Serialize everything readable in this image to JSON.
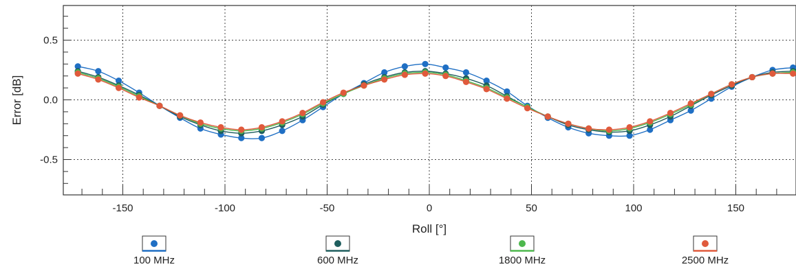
{
  "chart_data": {
    "type": "line",
    "xlabel": "Roll [°]",
    "ylabel": "Error [dB]",
    "xlim": [
      -180,
      180
    ],
    "ylim": [
      -0.8,
      0.8
    ],
    "x_ticks": [
      -150,
      -100,
      -50,
      0,
      50,
      100,
      150
    ],
    "y_ticks": [
      0.5,
      0.0,
      -0.5
    ],
    "x_tick_labels": [
      "-150",
      "-100",
      "-50",
      "0",
      "50",
      "100",
      "150"
    ],
    "y_tick_labels": [
      "0.5",
      "0.0",
      "-0.5"
    ],
    "grid": true,
    "legend_position": "bottom",
    "x": [
      -172,
      -162,
      -152,
      -142,
      -132,
      -122,
      -112,
      -102,
      -92,
      -82,
      -72,
      -62,
      -52,
      -42,
      -32,
      -22,
      -12,
      -2,
      8,
      18,
      28,
      38,
      48,
      58,
      68,
      78,
      88,
      98,
      108,
      118,
      128,
      138,
      148,
      158,
      168,
      178
    ],
    "series": [
      {
        "name": "100 MHz",
        "color": "#1f6fc4",
        "values": [
          0.28,
          0.24,
          0.16,
          0.06,
          -0.05,
          -0.15,
          -0.24,
          -0.29,
          -0.32,
          -0.32,
          -0.26,
          -0.17,
          -0.06,
          0.05,
          0.14,
          0.23,
          0.28,
          0.3,
          0.27,
          0.23,
          0.16,
          0.07,
          -0.05,
          -0.15,
          -0.23,
          -0.28,
          -0.3,
          -0.3,
          -0.25,
          -0.17,
          -0.09,
          0.01,
          0.11,
          0.19,
          0.25,
          0.27
        ]
      },
      {
        "name": "600 MHz",
        "color": "#1f5e5e",
        "values": [
          0.24,
          0.19,
          0.12,
          0.04,
          -0.05,
          -0.14,
          -0.21,
          -0.26,
          -0.28,
          -0.26,
          -0.21,
          -0.14,
          -0.04,
          0.05,
          0.13,
          0.19,
          0.23,
          0.24,
          0.22,
          0.18,
          0.12,
          0.03,
          -0.06,
          -0.14,
          -0.21,
          -0.25,
          -0.27,
          -0.26,
          -0.21,
          -0.14,
          -0.05,
          0.04,
          0.12,
          0.19,
          0.23,
          0.24
        ]
      },
      {
        "name": "1800 MHz",
        "color": "#4db84d",
        "values": [
          0.23,
          0.18,
          0.11,
          0.03,
          -0.05,
          -0.13,
          -0.2,
          -0.24,
          -0.26,
          -0.24,
          -0.19,
          -0.12,
          -0.03,
          0.05,
          0.12,
          0.18,
          0.22,
          0.23,
          0.21,
          0.16,
          0.1,
          0.02,
          -0.06,
          -0.14,
          -0.2,
          -0.24,
          -0.26,
          -0.24,
          -0.19,
          -0.12,
          -0.04,
          0.05,
          0.13,
          0.19,
          0.22,
          0.23
        ]
      },
      {
        "name": "2500 MHz",
        "color": "#e05a3c",
        "values": [
          0.22,
          0.17,
          0.1,
          0.02,
          -0.05,
          -0.13,
          -0.19,
          -0.23,
          -0.25,
          -0.23,
          -0.18,
          -0.11,
          -0.02,
          0.06,
          0.12,
          0.17,
          0.21,
          0.22,
          0.2,
          0.15,
          0.09,
          0.01,
          -0.07,
          -0.14,
          -0.2,
          -0.24,
          -0.25,
          -0.23,
          -0.18,
          -0.11,
          -0.03,
          0.05,
          0.13,
          0.19,
          0.22,
          0.22
        ]
      }
    ]
  }
}
